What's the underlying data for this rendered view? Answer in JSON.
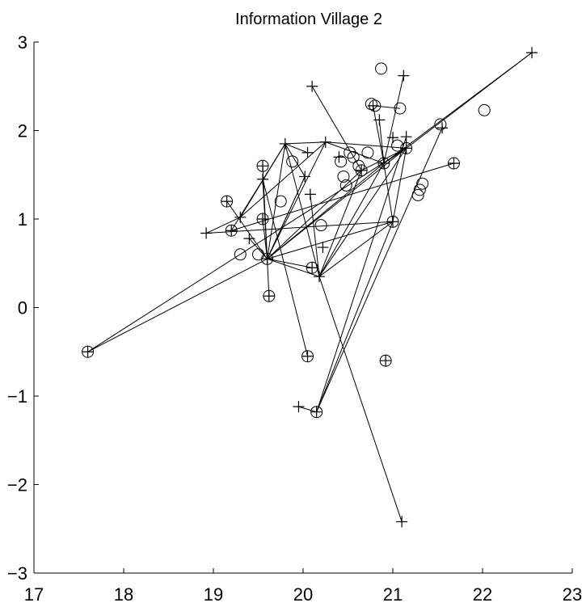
{
  "chart_data": {
    "type": "scatter",
    "title": "Information Village 2",
    "xlabel": "",
    "ylabel": "",
    "xlim": [
      17,
      23
    ],
    "ylim": [
      -3,
      3
    ],
    "xticks": [
      17,
      18,
      19,
      20,
      21,
      22,
      23
    ],
    "yticks": [
      -3,
      -2,
      -1,
      0,
      1,
      2,
      3
    ],
    "xtick_labels": [
      "17",
      "18",
      "19",
      "20",
      "21",
      "22",
      "23"
    ],
    "ytick_labels": [
      "−3",
      "−2",
      "−1",
      "0",
      "1",
      "2",
      "3"
    ],
    "grid": false,
    "legend": false,
    "series": [
      {
        "marker": "circle",
        "points": [
          [
            17.6,
            -0.5
          ],
          [
            19.15,
            1.2
          ],
          [
            19.2,
            0.87
          ],
          [
            19.3,
            0.6
          ],
          [
            19.5,
            0.6
          ],
          [
            19.55,
            1.6
          ],
          [
            19.55,
            1.0
          ],
          [
            19.6,
            0.55
          ],
          [
            19.62,
            0.13
          ],
          [
            19.75,
            1.2
          ],
          [
            19.88,
            1.65
          ],
          [
            20.05,
            -0.55
          ],
          [
            20.1,
            0.45
          ],
          [
            20.2,
            0.93
          ],
          [
            20.15,
            -1.18
          ],
          [
            20.42,
            1.65
          ],
          [
            20.45,
            1.48
          ],
          [
            20.48,
            1.38
          ],
          [
            20.52,
            1.75
          ],
          [
            20.56,
            1.7
          ],
          [
            20.62,
            1.6
          ],
          [
            20.65,
            1.55
          ],
          [
            20.72,
            1.75
          ],
          [
            20.76,
            2.3
          ],
          [
            20.8,
            2.28
          ],
          [
            20.87,
            2.7
          ],
          [
            20.9,
            1.63
          ],
          [
            20.92,
            -0.6
          ],
          [
            21.0,
            0.97
          ],
          [
            21.05,
            1.83
          ],
          [
            21.08,
            2.25
          ],
          [
            21.15,
            1.8
          ],
          [
            21.28,
            1.27
          ],
          [
            21.3,
            1.33
          ],
          [
            21.33,
            1.4
          ],
          [
            21.53,
            2.07
          ],
          [
            21.68,
            1.63
          ],
          [
            22.02,
            2.23
          ]
        ]
      },
      {
        "marker": "plus",
        "points": [
          [
            17.6,
            -0.5
          ],
          [
            18.92,
            0.84
          ],
          [
            19.15,
            1.2
          ],
          [
            19.2,
            0.87
          ],
          [
            19.3,
            1.02
          ],
          [
            19.4,
            0.78
          ],
          [
            19.55,
            1.6
          ],
          [
            19.55,
            1.45
          ],
          [
            19.55,
            1.0
          ],
          [
            19.6,
            0.55
          ],
          [
            19.62,
            0.13
          ],
          [
            19.8,
            1.85
          ],
          [
            19.95,
            -1.12
          ],
          [
            20.02,
            1.48
          ],
          [
            20.05,
            -0.55
          ],
          [
            20.05,
            1.75
          ],
          [
            20.08,
            1.28
          ],
          [
            20.1,
            0.45
          ],
          [
            20.1,
            2.5
          ],
          [
            20.15,
            -1.18
          ],
          [
            20.18,
            0.35
          ],
          [
            20.22,
            0.68
          ],
          [
            20.25,
            1.87
          ],
          [
            20.4,
            1.7
          ],
          [
            20.65,
            1.55
          ],
          [
            20.78,
            2.28
          ],
          [
            20.85,
            2.12
          ],
          [
            20.9,
            1.63
          ],
          [
            20.92,
            -0.6
          ],
          [
            21.0,
            1.92
          ],
          [
            21.0,
            0.97
          ],
          [
            21.1,
            -2.42
          ],
          [
            21.12,
            2.62
          ],
          [
            21.15,
            1.8
          ],
          [
            21.15,
            1.93
          ],
          [
            21.55,
            2.03
          ],
          [
            21.68,
            1.63
          ],
          [
            22.55,
            2.88
          ]
        ]
      }
    ],
    "lines": [
      [
        [
          17.6,
          -0.5
        ],
        [
          21.15,
          1.8
        ]
      ],
      [
        [
          17.6,
          -0.5
        ],
        [
          19.6,
          0.55
        ]
      ],
      [
        [
          18.92,
          0.84
        ],
        [
          19.3,
          1.02
        ]
      ],
      [
        [
          18.92,
          0.84
        ],
        [
          21.0,
          0.97
        ]
      ],
      [
        [
          19.15,
          1.2
        ],
        [
          19.6,
          0.55
        ]
      ],
      [
        [
          19.2,
          0.87
        ],
        [
          19.8,
          1.85
        ]
      ],
      [
        [
          19.2,
          0.87
        ],
        [
          21.68,
          1.63
        ]
      ],
      [
        [
          19.3,
          1.02
        ],
        [
          19.8,
          1.85
        ]
      ],
      [
        [
          19.3,
          1.02
        ],
        [
          20.25,
          1.87
        ]
      ],
      [
        [
          19.4,
          0.78
        ],
        [
          19.6,
          0.55
        ]
      ],
      [
        [
          19.55,
          1.6
        ],
        [
          19.6,
          0.55
        ]
      ],
      [
        [
          19.55,
          1.45
        ],
        [
          19.6,
          0.55
        ]
      ],
      [
        [
          19.55,
          1.0
        ],
        [
          19.6,
          0.55
        ]
      ],
      [
        [
          19.6,
          0.55
        ],
        [
          19.62,
          0.13
        ]
      ],
      [
        [
          19.6,
          0.55
        ],
        [
          19.8,
          1.85
        ]
      ],
      [
        [
          19.6,
          0.55
        ],
        [
          20.1,
          0.45
        ]
      ],
      [
        [
          19.6,
          0.55
        ],
        [
          20.02,
          1.48
        ]
      ],
      [
        [
          19.6,
          0.55
        ],
        [
          20.9,
          1.63
        ]
      ],
      [
        [
          19.6,
          0.55
        ],
        [
          21.0,
          0.97
        ]
      ],
      [
        [
          19.6,
          0.55
        ],
        [
          20.65,
          1.55
        ]
      ],
      [
        [
          19.6,
          0.55
        ],
        [
          20.25,
          1.87
        ]
      ],
      [
        [
          19.6,
          0.55
        ],
        [
          21.15,
          1.8
        ]
      ],
      [
        [
          19.8,
          1.85
        ],
        [
          20.25,
          1.87
        ]
      ],
      [
        [
          19.8,
          1.85
        ],
        [
          20.18,
          0.35
        ]
      ],
      [
        [
          19.8,
          1.85
        ],
        [
          20.05,
          1.75
        ]
      ],
      [
        [
          19.8,
          1.85
        ],
        [
          20.02,
          1.48
        ]
      ],
      [
        [
          20.02,
          1.48
        ],
        [
          19.6,
          0.55
        ]
      ],
      [
        [
          20.05,
          -0.55
        ],
        [
          19.55,
          1.45
        ]
      ],
      [
        [
          20.08,
          1.28
        ],
        [
          20.18,
          0.35
        ]
      ],
      [
        [
          20.1,
          2.5
        ],
        [
          20.65,
          1.55
        ]
      ],
      [
        [
          20.18,
          0.35
        ],
        [
          21.1,
          -2.42
        ]
      ],
      [
        [
          20.18,
          0.35
        ],
        [
          20.9,
          1.63
        ]
      ],
      [
        [
          20.18,
          0.35
        ],
        [
          21.0,
          0.97
        ]
      ],
      [
        [
          20.18,
          0.35
        ],
        [
          21.15,
          1.8
        ]
      ],
      [
        [
          20.18,
          0.35
        ],
        [
          19.6,
          0.55
        ]
      ],
      [
        [
          20.18,
          0.35
        ],
        [
          20.65,
          1.55
        ]
      ],
      [
        [
          20.15,
          -1.18
        ],
        [
          21.0,
          0.97
        ]
      ],
      [
        [
          20.15,
          -1.18
        ],
        [
          21.15,
          1.93
        ]
      ],
      [
        [
          20.15,
          -1.18
        ],
        [
          21.55,
          2.03
        ]
      ],
      [
        [
          20.15,
          -1.18
        ],
        [
          19.95,
          -1.12
        ]
      ],
      [
        [
          20.25,
          1.87
        ],
        [
          20.9,
          1.63
        ]
      ],
      [
        [
          20.25,
          1.87
        ],
        [
          21.15,
          1.8
        ]
      ],
      [
        [
          20.65,
          1.55
        ],
        [
          21.15,
          1.8
        ]
      ],
      [
        [
          20.78,
          2.28
        ],
        [
          20.9,
          1.63
        ]
      ],
      [
        [
          20.78,
          2.28
        ],
        [
          21.08,
          2.25
        ]
      ],
      [
        [
          20.85,
          2.12
        ],
        [
          20.9,
          1.63
        ]
      ],
      [
        [
          20.9,
          1.63
        ],
        [
          21.12,
          2.62
        ]
      ],
      [
        [
          21.0,
          0.97
        ],
        [
          20.9,
          1.63
        ]
      ],
      [
        [
          21.0,
          0.97
        ],
        [
          21.15,
          1.8
        ]
      ],
      [
        [
          21.15,
          1.8
        ],
        [
          22.55,
          2.88
        ]
      ],
      [
        [
          20.9,
          1.63
        ],
        [
          22.55,
          2.88
        ]
      ],
      [
        [
          20.9,
          1.63
        ],
        [
          21.15,
          1.8
        ]
      ]
    ]
  }
}
